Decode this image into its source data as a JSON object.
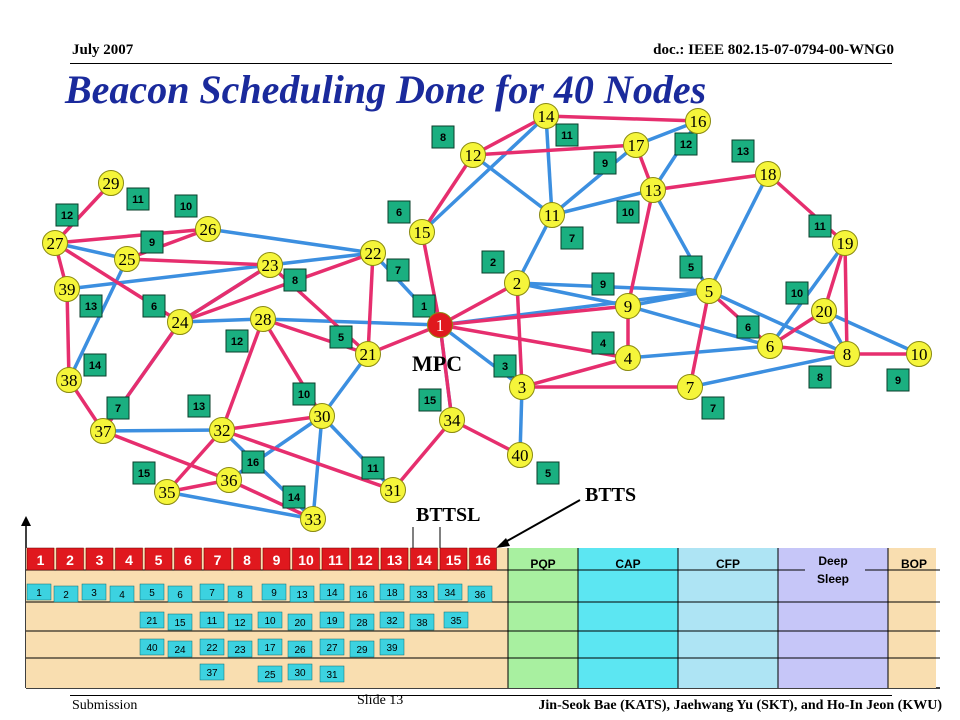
{
  "header": {
    "date": "July 2007",
    "doc_id": "doc.: IEEE 802.15-07-0794-00-WNG0"
  },
  "title": "Beacon Scheduling Done for 40 Nodes",
  "footer": {
    "submission": "Submission",
    "slide": "Slide 13",
    "authors": "Jin-Seok Bae (KATS), Jaehwang Yu (SKT), and Ho-In Jeon (KWU)"
  },
  "diagram": {
    "mpc_label": "MPC",
    "bttsl_label": "BTTSL",
    "btts_label": "BTTS",
    "colors": {
      "node_fill": "#f5f53a",
      "box_fill": "#1aaf80",
      "tree_edge": "#e62e6e",
      "mesh_edge": "#3c8fe0",
      "mpc_fill": "#e0181e",
      "slot_fill": "#e0181e"
    },
    "nodes": [
      {
        "id": "1",
        "label": "1"
      },
      {
        "id": "2",
        "label": "2"
      },
      {
        "id": "3",
        "label": "3"
      },
      {
        "id": "4",
        "label": "4"
      },
      {
        "id": "5",
        "label": "5"
      },
      {
        "id": "6",
        "label": "6"
      },
      {
        "id": "7",
        "label": "7"
      },
      {
        "id": "8",
        "label": "8"
      },
      {
        "id": "9",
        "label": "9"
      },
      {
        "id": "10",
        "label": "10"
      },
      {
        "id": "11",
        "label": "11"
      },
      {
        "id": "12",
        "label": "12"
      },
      {
        "id": "13",
        "label": "13"
      },
      {
        "id": "14",
        "label": "14"
      },
      {
        "id": "15",
        "label": "15"
      },
      {
        "id": "16",
        "label": "16"
      },
      {
        "id": "17",
        "label": "17"
      },
      {
        "id": "18",
        "label": "18"
      },
      {
        "id": "19",
        "label": "19"
      },
      {
        "id": "20",
        "label": "20"
      },
      {
        "id": "21",
        "label": "21"
      },
      {
        "id": "22",
        "label": "22"
      },
      {
        "id": "23",
        "label": "23"
      },
      {
        "id": "24",
        "label": "24"
      },
      {
        "id": "25",
        "label": "25"
      },
      {
        "id": "26",
        "label": "26"
      },
      {
        "id": "27",
        "label": "27"
      },
      {
        "id": "28",
        "label": "28"
      },
      {
        "id": "29",
        "label": "29"
      },
      {
        "id": "30",
        "label": "30"
      },
      {
        "id": "31",
        "label": "31"
      },
      {
        "id": "32",
        "label": "32"
      },
      {
        "id": "33",
        "label": "33"
      },
      {
        "id": "34",
        "label": "34"
      },
      {
        "id": "35",
        "label": "35"
      },
      {
        "id": "36",
        "label": "36"
      },
      {
        "id": "37",
        "label": "37"
      },
      {
        "id": "38",
        "label": "38"
      },
      {
        "id": "39",
        "label": "39"
      },
      {
        "id": "40",
        "label": "40"
      }
    ],
    "slot_boxes": [
      "8",
      "11",
      "12",
      "13",
      "9",
      "10",
      "7",
      "2",
      "9",
      "5",
      "10",
      "6",
      "4",
      "3",
      "15",
      "5",
      "7",
      "8",
      "9",
      "11",
      "6",
      "10",
      "9",
      "12",
      "11",
      "13",
      "14",
      "6",
      "8",
      "12",
      "7",
      "1",
      "5",
      "10",
      "13",
      "16",
      "15",
      "14",
      "11"
    ],
    "tree_edges": [
      [
        "1",
        "15"
      ],
      [
        "1",
        "21"
      ],
      [
        "1",
        "2"
      ],
      [
        "1",
        "4"
      ],
      [
        "1",
        "9"
      ],
      [
        "15",
        "12"
      ],
      [
        "12",
        "14"
      ],
      [
        "14",
        "16"
      ],
      [
        "12",
        "17"
      ],
      [
        "17",
        "13"
      ],
      [
        "13",
        "18"
      ],
      [
        "18",
        "19"
      ],
      [
        "19",
        "20"
      ],
      [
        "20",
        "6"
      ],
      [
        "6",
        "8"
      ],
      [
        "8",
        "10"
      ],
      [
        "5",
        "7"
      ],
      [
        "7",
        "3"
      ],
      [
        "3",
        "2"
      ],
      [
        "3",
        "4"
      ],
      [
        "4",
        "9"
      ],
      [
        "9",
        "13"
      ],
      [
        "5",
        "6"
      ],
      [
        "21",
        "22"
      ],
      [
        "21",
        "23"
      ],
      [
        "21",
        "28"
      ],
      [
        "22",
        "24"
      ],
      [
        "23",
        "25"
      ],
      [
        "23",
        "24"
      ],
      [
        "24",
        "27"
      ],
      [
        "25",
        "26"
      ],
      [
        "26",
        "27"
      ],
      [
        "27",
        "29"
      ],
      [
        "27",
        "39"
      ],
      [
        "39",
        "38"
      ],
      [
        "38",
        "37"
      ],
      [
        "37",
        "36"
      ],
      [
        "36",
        "35"
      ],
      [
        "24",
        "37"
      ],
      [
        "28",
        "30"
      ],
      [
        "30",
        "32"
      ],
      [
        "32",
        "31"
      ],
      [
        "32",
        "35"
      ],
      [
        "36",
        "33"
      ],
      [
        "31",
        "34"
      ],
      [
        "34",
        "40"
      ],
      [
        "34",
        "1"
      ],
      [
        "28",
        "32"
      ],
      [
        "8",
        "19"
      ]
    ],
    "mesh_edges": [
      [
        "1",
        "22"
      ],
      [
        "1",
        "28"
      ],
      [
        "1",
        "34"
      ],
      [
        "1",
        "3"
      ],
      [
        "1",
        "5"
      ],
      [
        "2",
        "11"
      ],
      [
        "2",
        "9"
      ],
      [
        "2",
        "5"
      ],
      [
        "11",
        "14"
      ],
      [
        "11",
        "17"
      ],
      [
        "11",
        "13"
      ],
      [
        "13",
        "16"
      ],
      [
        "13",
        "5"
      ],
      [
        "9",
        "5"
      ],
      [
        "9",
        "6"
      ],
      [
        "5",
        "18"
      ],
      [
        "5",
        "8"
      ],
      [
        "6",
        "19"
      ],
      [
        "7",
        "8"
      ],
      [
        "8",
        "20"
      ],
      [
        "4",
        "6"
      ],
      [
        "3",
        "40"
      ],
      [
        "23",
        "24"
      ],
      [
        "23",
        "22"
      ],
      [
        "22",
        "26"
      ],
      [
        "25",
        "27"
      ],
      [
        "25",
        "38"
      ],
      [
        "39",
        "23"
      ],
      [
        "24",
        "28"
      ],
      [
        "32",
        "37"
      ],
      [
        "32",
        "33"
      ],
      [
        "30",
        "33"
      ],
      [
        "30",
        "21"
      ],
      [
        "31",
        "30"
      ],
      [
        "36",
        "30"
      ],
      [
        "35",
        "33"
      ],
      [
        "37",
        "24"
      ],
      [
        "16",
        "17"
      ],
      [
        "12",
        "11"
      ],
      [
        "20",
        "10"
      ],
      [
        "15",
        "14"
      ]
    ],
    "slot_numbers": [
      "1",
      "2",
      "3",
      "4",
      "5",
      "6",
      "7",
      "8",
      "9",
      "10",
      "11",
      "12",
      "13",
      "14",
      "15",
      "16"
    ],
    "phases": [
      "PQP",
      "CAP",
      "CFP",
      "Deep Sleep",
      "BOP"
    ],
    "rows": [
      [
        "1",
        "2",
        "3",
        "4",
        "5",
        "6",
        "7",
        "8",
        "9",
        "13",
        "14",
        "16",
        "18",
        "33",
        "34",
        "36"
      ],
      [
        "21",
        "15",
        "11",
        "12",
        "10",
        "20",
        "19",
        "28",
        "32",
        "38",
        "35"
      ],
      [
        "40",
        "24",
        "22",
        "23",
        "17",
        "26",
        "27",
        "29",
        "39"
      ],
      [
        "37",
        "25",
        "30",
        "31"
      ]
    ]
  }
}
